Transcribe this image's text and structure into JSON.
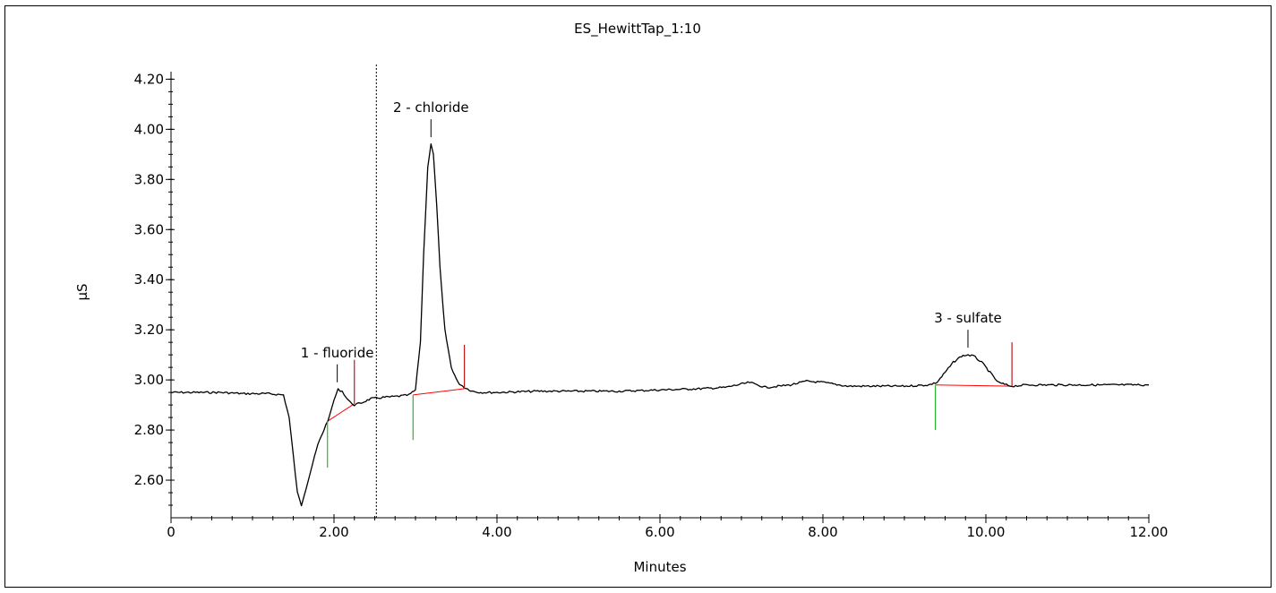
{
  "chart_data": {
    "type": "line",
    "title": "ES_HewittTap_1:10",
    "xlabel": "Minutes",
    "ylabel": "µS",
    "xlim": [
      0,
      12
    ],
    "ylim": [
      2.45,
      4.23
    ],
    "x_ticks": [
      {
        "value": 0,
        "label": "0"
      },
      {
        "value": 2,
        "label": "2.00"
      },
      {
        "value": 4,
        "label": "4.00"
      },
      {
        "value": 6,
        "label": "6.00"
      },
      {
        "value": 8,
        "label": "8.00"
      },
      {
        "value": 10,
        "label": "10.00"
      },
      {
        "value": 12,
        "label": "12.00"
      }
    ],
    "y_ticks": [
      {
        "value": 2.6,
        "label": "2.60"
      },
      {
        "value": 2.8,
        "label": "2.80"
      },
      {
        "value": 3.0,
        "label": "3.00"
      },
      {
        "value": 3.2,
        "label": "3.20"
      },
      {
        "value": 3.4,
        "label": "3.40"
      },
      {
        "value": 3.6,
        "label": "3.60"
      },
      {
        "value": 3.8,
        "label": "3.80"
      },
      {
        "value": 4.0,
        "label": "4.00"
      },
      {
        "value": 4.2,
        "label": "4.20"
      }
    ],
    "injection_marker_x": 2.52,
    "series": [
      {
        "color": "#000000",
        "x": [
          0,
          0.3,
          0.6,
          0.9,
          1.2,
          1.38,
          1.45,
          1.5,
          1.55,
          1.6,
          1.7,
          1.8,
          1.9,
          1.95,
          2.0,
          2.05,
          2.1,
          2.15,
          2.2,
          2.25,
          2.35,
          2.45,
          2.6,
          2.8,
          2.92,
          3.0,
          3.06,
          3.1,
          3.15,
          3.19,
          3.22,
          3.26,
          3.3,
          3.36,
          3.44,
          3.52,
          3.6,
          3.7,
          3.8,
          4.0,
          4.5,
          5.0,
          5.5,
          6.0,
          6.5,
          6.8,
          7.1,
          7.3,
          7.6,
          7.8,
          8.0,
          8.3,
          8.6,
          9.0,
          9.3,
          9.4,
          9.5,
          9.6,
          9.7,
          9.78,
          9.85,
          9.95,
          10.05,
          10.15,
          10.25,
          10.32,
          10.5,
          11.0,
          11.5,
          12.0
        ],
        "y": [
          2.95,
          2.95,
          2.95,
          2.945,
          2.945,
          2.94,
          2.85,
          2.7,
          2.55,
          2.5,
          2.62,
          2.74,
          2.82,
          2.86,
          2.92,
          2.962,
          2.955,
          2.93,
          2.91,
          2.9,
          2.91,
          2.925,
          2.93,
          2.935,
          2.94,
          2.96,
          3.15,
          3.5,
          3.85,
          3.94,
          3.9,
          3.7,
          3.45,
          3.2,
          3.05,
          2.99,
          2.97,
          2.955,
          2.95,
          2.95,
          2.955,
          2.955,
          2.955,
          2.96,
          2.965,
          2.97,
          2.99,
          2.97,
          2.98,
          2.995,
          2.99,
          2.975,
          2.975,
          2.975,
          2.98,
          2.99,
          3.03,
          3.07,
          3.095,
          3.1,
          3.095,
          3.07,
          3.03,
          2.99,
          2.98,
          2.975,
          2.98,
          2.98,
          2.98,
          2.98
        ]
      }
    ],
    "baselines": [
      {
        "color": "#ff0000",
        "x": [
          1.92,
          2.25
        ],
        "y": [
          2.835,
          2.905
        ]
      },
      {
        "color": "#ff0000",
        "x": [
          2.97,
          3.6
        ],
        "y": [
          2.94,
          2.965
        ]
      },
      {
        "color": "#ff0000",
        "x": [
          9.38,
          10.32
        ],
        "y": [
          2.98,
          2.975
        ]
      }
    ],
    "peak_start_markers": [
      {
        "x": 1.92,
        "y_top": 2.835,
        "y_bottom": 2.65
      },
      {
        "x": 2.97,
        "y_top": 2.94,
        "y_bottom": 2.76
      },
      {
        "x": 9.38,
        "y_top": 2.98,
        "y_bottom": 2.8
      }
    ],
    "peak_end_markers": [
      {
        "x": 2.25,
        "y_top": 3.08,
        "y_bottom": 2.905
      },
      {
        "x": 3.6,
        "y_top": 3.14,
        "y_bottom": 2.965
      },
      {
        "x": 10.32,
        "y_top": 3.15,
        "y_bottom": 2.975
      }
    ],
    "annotations": [
      {
        "text": "1 - fluoride",
        "x": 2.04,
        "y": 2.962
      },
      {
        "text": "2 - chloride",
        "x": 3.19,
        "y": 3.94
      },
      {
        "text": "3 - sulfate",
        "x": 9.78,
        "y": 3.1
      }
    ],
    "grid": false,
    "legend": "none"
  }
}
